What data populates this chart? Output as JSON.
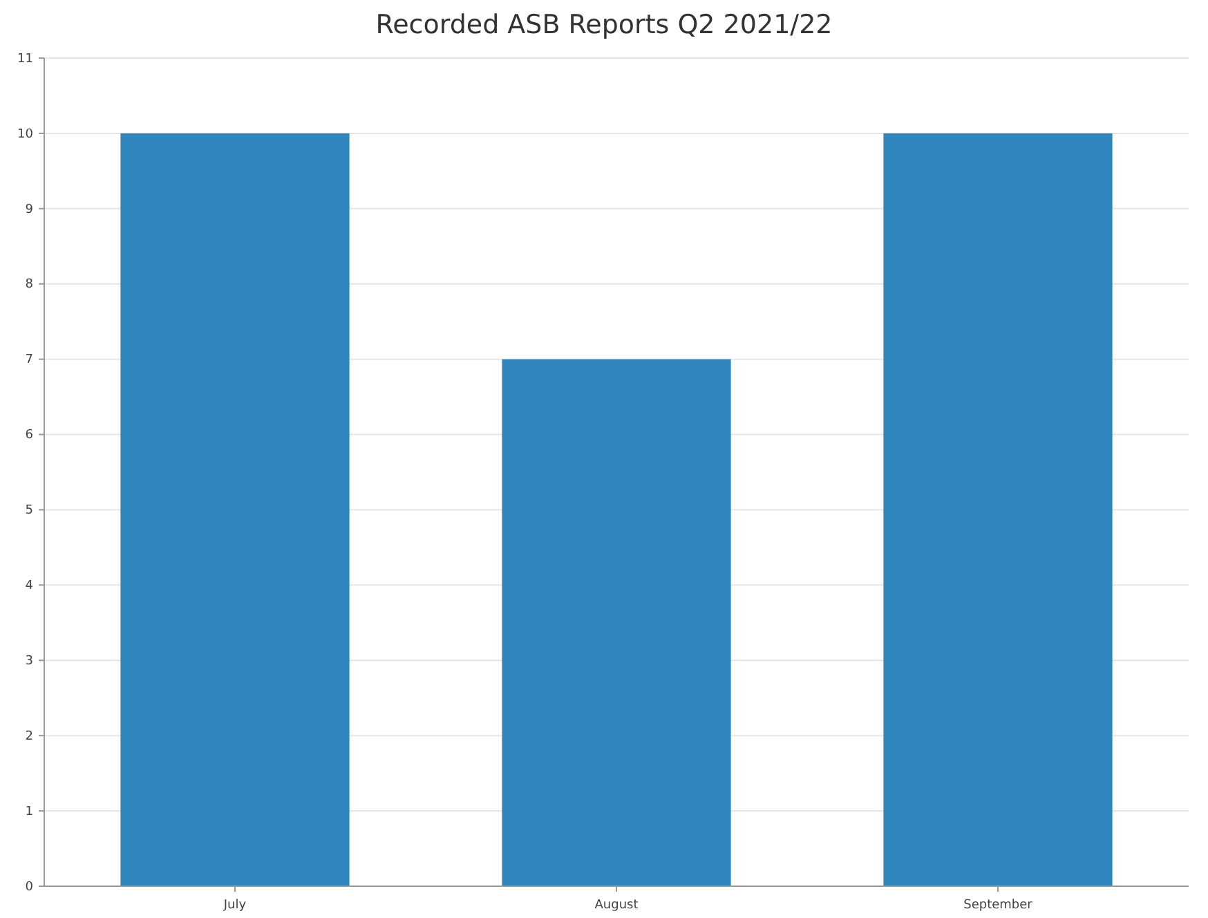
{
  "chart_data": {
    "type": "bar",
    "title": "Recorded ASB Reports Q2 2021/22",
    "categories": [
      "July",
      "August",
      "September"
    ],
    "values": [
      10,
      7,
      10
    ],
    "color": "#3186be",
    "ylim": [
      0,
      11
    ],
    "yticks": [
      0,
      1,
      2,
      3,
      4,
      5,
      6,
      7,
      8,
      9,
      10,
      11
    ],
    "grid": "y"
  }
}
